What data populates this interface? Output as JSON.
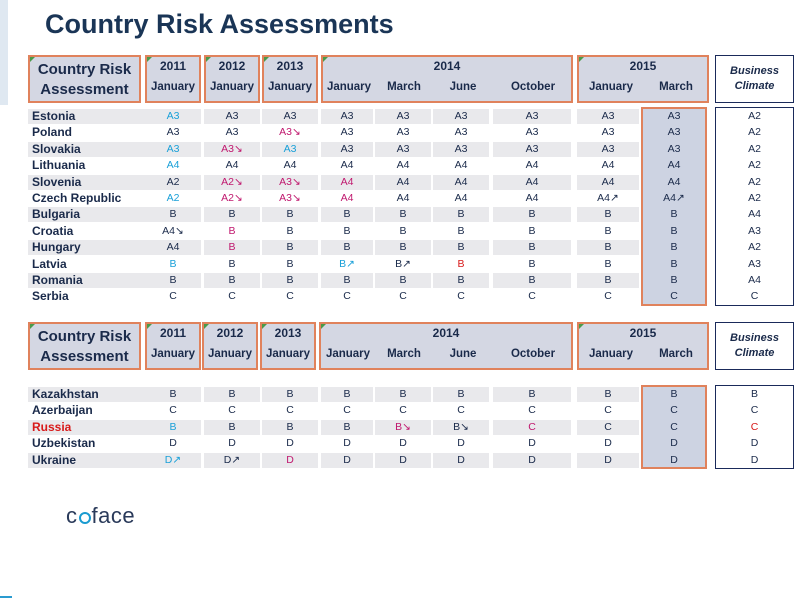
{
  "title": "Country Risk Assessments",
  "logo": {
    "pre": "c",
    "post": "face"
  },
  "header": {
    "label_line1": "Country Risk",
    "label_line2": "Assessment",
    "business_climate_1": "Business",
    "business_climate_2": "Climate",
    "years": {
      "y2011": "2011",
      "y2012": "2012",
      "y2013": "2013",
      "y2014": "2014",
      "y2015": "2015"
    },
    "months": {
      "m2011": "January",
      "m2012": "January",
      "m2013": "January",
      "m2014_1": "January",
      "m2014_2": "March",
      "m2014_3": "June",
      "m2014_4": "October",
      "m2015_1": "January",
      "m2015_2": "March"
    }
  },
  "colors": {
    "blue": "#1aa0d8",
    "magenta": "#c0186e",
    "red": "#d81a1a",
    "dark": "#1a2a4a"
  },
  "table1": [
    {
      "country": "Estonia",
      "cells": [
        [
          "A3",
          "b"
        ],
        [
          "A3",
          ""
        ],
        [
          "A3",
          ""
        ],
        [
          "A3",
          ""
        ],
        [
          "A3",
          ""
        ],
        [
          "A3",
          ""
        ],
        [
          "A3",
          ""
        ],
        [
          "A3",
          ""
        ],
        [
          "A3",
          ""
        ],
        [
          "A2",
          ""
        ]
      ]
    },
    {
      "country": "Poland",
      "cells": [
        [
          "A3",
          ""
        ],
        [
          "A3",
          ""
        ],
        [
          "A3↘",
          "m"
        ],
        [
          "A3",
          ""
        ],
        [
          "A3",
          ""
        ],
        [
          "A3",
          ""
        ],
        [
          "A3",
          ""
        ],
        [
          "A3",
          ""
        ],
        [
          "A3",
          ""
        ],
        [
          "A2",
          ""
        ]
      ]
    },
    {
      "country": "Slovakia",
      "cells": [
        [
          "A3",
          "b"
        ],
        [
          "A3↘",
          "m"
        ],
        [
          "A3",
          "b"
        ],
        [
          "A3",
          ""
        ],
        [
          "A3",
          ""
        ],
        [
          "A3",
          ""
        ],
        [
          "A3",
          ""
        ],
        [
          "A3",
          ""
        ],
        [
          "A3",
          ""
        ],
        [
          "A2",
          ""
        ]
      ]
    },
    {
      "country": "Lithuania",
      "cells": [
        [
          "A4",
          "b"
        ],
        [
          "A4",
          ""
        ],
        [
          "A4",
          ""
        ],
        [
          "A4",
          ""
        ],
        [
          "A4",
          ""
        ],
        [
          "A4",
          ""
        ],
        [
          "A4",
          ""
        ],
        [
          "A4",
          ""
        ],
        [
          "A4",
          ""
        ],
        [
          "A2",
          ""
        ]
      ]
    },
    {
      "country": "Slovenia",
      "cells": [
        [
          "A2",
          ""
        ],
        [
          "A2↘",
          "m"
        ],
        [
          "A3↘",
          "m"
        ],
        [
          "A4",
          "m"
        ],
        [
          "A4",
          ""
        ],
        [
          "A4",
          ""
        ],
        [
          "A4",
          ""
        ],
        [
          "A4",
          ""
        ],
        [
          "A4",
          ""
        ],
        [
          "A2",
          ""
        ]
      ]
    },
    {
      "country": "Czech Republic",
      "cells": [
        [
          "A2",
          "b"
        ],
        [
          "A2↘",
          "m"
        ],
        [
          "A3↘",
          "m"
        ],
        [
          "A4",
          "m"
        ],
        [
          "A4",
          ""
        ],
        [
          "A4",
          ""
        ],
        [
          "A4",
          ""
        ],
        [
          "A4↗",
          ""
        ],
        [
          "A4↗",
          ""
        ],
        [
          "A2",
          ""
        ]
      ]
    },
    {
      "country": "Bulgaria",
      "cells": [
        [
          "B",
          ""
        ],
        [
          "B",
          ""
        ],
        [
          "B",
          ""
        ],
        [
          "B",
          ""
        ],
        [
          "B",
          ""
        ],
        [
          "B",
          ""
        ],
        [
          "B",
          ""
        ],
        [
          "B",
          ""
        ],
        [
          "B",
          ""
        ],
        [
          "A4",
          ""
        ]
      ]
    },
    {
      "country": "Croatia",
      "cells": [
        [
          "A4↘",
          ""
        ],
        [
          "B",
          "m"
        ],
        [
          "B",
          ""
        ],
        [
          "B",
          ""
        ],
        [
          "B",
          ""
        ],
        [
          "B",
          ""
        ],
        [
          "B",
          ""
        ],
        [
          "B",
          ""
        ],
        [
          "B",
          ""
        ],
        [
          "A3",
          ""
        ]
      ]
    },
    {
      "country": "Hungary",
      "cells": [
        [
          "A4",
          ""
        ],
        [
          "B",
          "m"
        ],
        [
          "B",
          ""
        ],
        [
          "B",
          ""
        ],
        [
          "B",
          ""
        ],
        [
          "B",
          ""
        ],
        [
          "B",
          ""
        ],
        [
          "B",
          ""
        ],
        [
          "B",
          ""
        ],
        [
          "A2",
          ""
        ]
      ]
    },
    {
      "country": "Latvia",
      "cells": [
        [
          "B",
          "b"
        ],
        [
          "B",
          ""
        ],
        [
          "B",
          ""
        ],
        [
          "B↗",
          "b"
        ],
        [
          "B↗",
          ""
        ],
        [
          "B",
          "r"
        ],
        [
          "B",
          ""
        ],
        [
          "B",
          ""
        ],
        [
          "B",
          ""
        ],
        [
          "A3",
          ""
        ]
      ]
    },
    {
      "country": "Romania",
      "cells": [
        [
          "B",
          ""
        ],
        [
          "B",
          ""
        ],
        [
          "B",
          ""
        ],
        [
          "B",
          ""
        ],
        [
          "B",
          ""
        ],
        [
          "B",
          ""
        ],
        [
          "B",
          ""
        ],
        [
          "B",
          ""
        ],
        [
          "B",
          ""
        ],
        [
          "A4",
          ""
        ]
      ]
    },
    {
      "country": "Serbia",
      "cells": [
        [
          "C",
          ""
        ],
        [
          "C",
          ""
        ],
        [
          "C",
          ""
        ],
        [
          "C",
          ""
        ],
        [
          "C",
          ""
        ],
        [
          "C",
          ""
        ],
        [
          "C",
          ""
        ],
        [
          "C",
          ""
        ],
        [
          "C",
          ""
        ],
        [
          "C",
          ""
        ]
      ]
    }
  ],
  "table2": [
    {
      "country": "Kazakhstan",
      "cells": [
        [
          "B",
          ""
        ],
        [
          "B",
          ""
        ],
        [
          "B",
          ""
        ],
        [
          "B",
          ""
        ],
        [
          "B",
          ""
        ],
        [
          "B",
          ""
        ],
        [
          "B",
          ""
        ],
        [
          "B",
          ""
        ],
        [
          "B",
          ""
        ],
        [
          "B",
          ""
        ]
      ]
    },
    {
      "country": "Azerbaijan",
      "cells": [
        [
          "C",
          ""
        ],
        [
          "C",
          ""
        ],
        [
          "C",
          ""
        ],
        [
          "C",
          ""
        ],
        [
          "C",
          ""
        ],
        [
          "C",
          ""
        ],
        [
          "C",
          ""
        ],
        [
          "C",
          ""
        ],
        [
          "C",
          ""
        ],
        [
          "C",
          ""
        ]
      ]
    },
    {
      "country": "Russia",
      "red": true,
      "cells": [
        [
          "B",
          "b"
        ],
        [
          "B",
          ""
        ],
        [
          "B",
          ""
        ],
        [
          "B",
          ""
        ],
        [
          "B↘",
          "m"
        ],
        [
          "B↘",
          ""
        ],
        [
          "C",
          "m"
        ],
        [
          "C",
          ""
        ],
        [
          "C",
          ""
        ],
        [
          "C",
          "r"
        ]
      ]
    },
    {
      "country": "Uzbekistan",
      "cells": [
        [
          "D",
          ""
        ],
        [
          "D",
          ""
        ],
        [
          "D",
          ""
        ],
        [
          "D",
          ""
        ],
        [
          "D",
          ""
        ],
        [
          "D",
          ""
        ],
        [
          "D",
          ""
        ],
        [
          "D",
          ""
        ],
        [
          "D",
          ""
        ],
        [
          "D",
          ""
        ]
      ]
    },
    {
      "country": "Ukraine",
      "cells": [
        [
          "D↗",
          "b"
        ],
        [
          "D↗",
          ""
        ],
        [
          "D",
          "m"
        ],
        [
          "D",
          ""
        ],
        [
          "D",
          ""
        ],
        [
          "D",
          ""
        ],
        [
          "D",
          ""
        ],
        [
          "D",
          ""
        ],
        [
          "D",
          ""
        ],
        [
          "D",
          ""
        ]
      ]
    }
  ]
}
